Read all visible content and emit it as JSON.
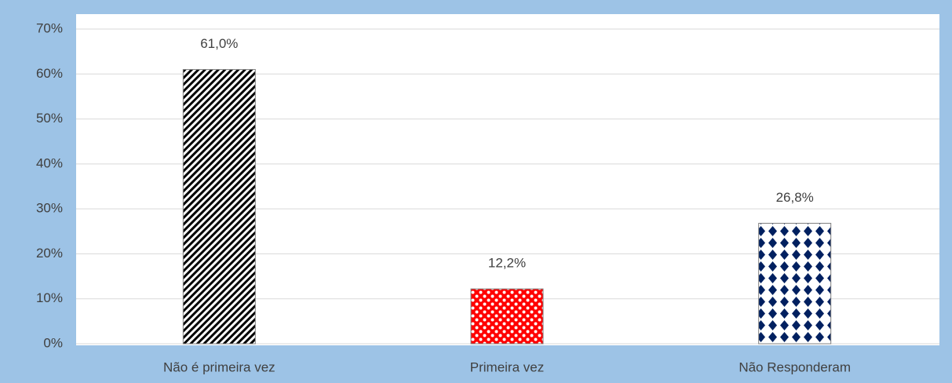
{
  "chart_data": {
    "type": "bar",
    "categories": [
      "Não é primeira vez",
      "Primeira vez",
      "Não Responderam"
    ],
    "values": [
      61.0,
      12.2,
      26.8
    ],
    "value_labels": [
      "61,0%",
      "12,2%",
      "26,8%"
    ],
    "colors": [
      "#000000",
      "#ff0000",
      "#002060"
    ],
    "ylim": [
      0,
      70
    ],
    "yticks": [
      {
        "value": 0,
        "label": "0%"
      },
      {
        "value": 10,
        "label": "10%"
      },
      {
        "value": 20,
        "label": "20%"
      },
      {
        "value": 30,
        "label": "30%"
      },
      {
        "value": 40,
        "label": "40%"
      },
      {
        "value": 50,
        "label": "50%"
      },
      {
        "value": 60,
        "label": "60%"
      },
      {
        "value": 70,
        "label": "70%"
      }
    ],
    "grid": true
  }
}
